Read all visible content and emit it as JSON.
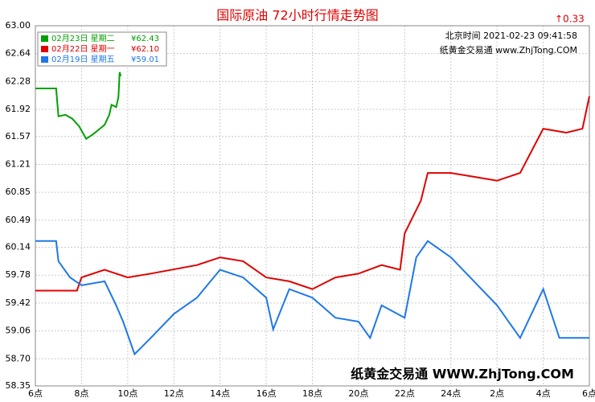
{
  "chart_data": {
    "type": "line",
    "title": "国际原油 72小时行情走势图",
    "change": "0.33",
    "info_time": "北京时间 2021-02-23 09:41:58",
    "info_site": "纸黄金交易通 www.ZhjTong.COM",
    "watermark": "纸黄金交易通 WWW.ZhjTong.COM",
    "xlim": [
      6,
      30
    ],
    "xticks": [
      {
        "value": 6,
        "label": "6点"
      },
      {
        "value": 8,
        "label": "8点"
      },
      {
        "value": 10,
        "label": "10点"
      },
      {
        "value": 12,
        "label": "12点"
      },
      {
        "value": 14,
        "label": "14点"
      },
      {
        "value": 16,
        "label": "16点"
      },
      {
        "value": 18,
        "label": "18点"
      },
      {
        "value": 20,
        "label": "20点"
      },
      {
        "value": 22,
        "label": "22点"
      },
      {
        "value": 24,
        "label": "24点"
      },
      {
        "value": 26,
        "label": "2点"
      },
      {
        "value": 28,
        "label": "4点"
      },
      {
        "value": 30,
        "label": "6点"
      }
    ],
    "ylim": [
      58.35,
      63
    ],
    "yticks": [
      {
        "value": 63,
        "label": "63.00"
      },
      62.64,
      62.28,
      61.92,
      61.57,
      61.21,
      60.85,
      60.49,
      60.14,
      59.78,
      59.42,
      59.06,
      {
        "value": 58.7,
        "label": "58.70"
      },
      58.35
    ],
    "grid": true,
    "series": [
      {
        "name": "02月23日 星期二",
        "price_label": "¥62.43",
        "color": "#00a000",
        "x": [
          6,
          6.9,
          7,
          7.3,
          7.6,
          7.9,
          8.2,
          8.5,
          9,
          9.2,
          9.3,
          9.5,
          9.6,
          9.65,
          9.7
        ],
        "values": [
          62.19,
          62.19,
          61.83,
          61.85,
          61.8,
          61.7,
          61.54,
          61.6,
          61.72,
          61.85,
          61.98,
          61.95,
          62.08,
          62.4,
          62.35
        ]
      },
      {
        "name": "02月22日 星期一",
        "price_label": "¥62.10",
        "color": "#e00000",
        "x": [
          6,
          7.8,
          8,
          9,
          10,
          11,
          13,
          14,
          15,
          16,
          17,
          18,
          19,
          20,
          21,
          21.8,
          22,
          22.7,
          23,
          24,
          25,
          26,
          27,
          28,
          29,
          29.7,
          30
        ],
        "values": [
          59.58,
          59.58,
          59.75,
          59.85,
          59.75,
          59.8,
          59.91,
          60.01,
          59.96,
          59.75,
          59.7,
          59.6,
          59.75,
          59.8,
          59.91,
          59.85,
          60.32,
          60.74,
          61.1,
          61.1,
          61.05,
          61,
          61.1,
          61.67,
          61.62,
          61.67,
          62.09
        ]
      },
      {
        "name": "02月19日 星期五",
        "price_label": "¥59.01",
        "color": "#1e78e6",
        "x": [
          6,
          6.9,
          7,
          7.5,
          8,
          9,
          9.5,
          9.8,
          10.3,
          11,
          12,
          13,
          14,
          15,
          16,
          16.3,
          17,
          18,
          19,
          20,
          20.5,
          21,
          22,
          22.5,
          23,
          24,
          25,
          26,
          27,
          28,
          28.7,
          30
        ],
        "values": [
          60.22,
          60.22,
          59.96,
          59.75,
          59.65,
          59.7,
          59.39,
          59.18,
          58.76,
          58.97,
          59.28,
          59.49,
          59.85,
          59.75,
          59.49,
          59.08,
          59.6,
          59.49,
          59.23,
          59.18,
          58.97,
          59.39,
          59.23,
          60.01,
          60.22,
          60.01,
          59.7,
          59.39,
          58.97,
          59.6,
          58.97,
          58.97
        ]
      }
    ]
  }
}
